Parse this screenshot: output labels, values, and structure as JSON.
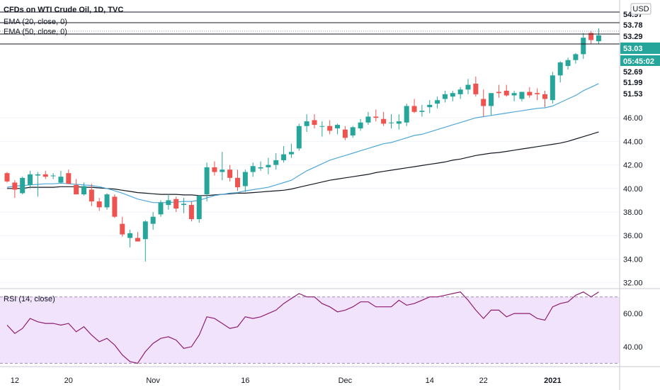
{
  "header": {
    "title": "CFDs on WTI Crude Oil, 1D, TVC",
    "ema20_label": "EMA (20, close, 0)",
    "ema50_label": "EMA (50, close, 0)",
    "currency": "USD"
  },
  "rsi_panel": {
    "label": "RSI (14, close)"
  },
  "x_axis_labels": [
    "12",
    "20",
    "Nov",
    "16",
    "Dec",
    "14",
    "22",
    "2021"
  ],
  "price_axis_ticks": [
    "46.00",
    "44.00",
    "42.00",
    "40.00",
    "38.00",
    "36.00",
    "34.00",
    "32.00"
  ],
  "rsi_axis_ticks": [
    "60.00",
    "40.00"
  ],
  "price_tags": [
    {
      "text": "54.97",
      "style": "line"
    },
    {
      "text": "53.78",
      "style": "line"
    },
    {
      "text": "53.29",
      "style": "line"
    },
    {
      "text": "53.03",
      "style": "green"
    },
    {
      "text": "05:45:02",
      "style": "green"
    },
    {
      "text": "52.69",
      "style": "line"
    },
    {
      "text": "51.99",
      "style": "line"
    },
    {
      "text": "51.53",
      "style": "line"
    }
  ],
  "colors": {
    "up": "#26a69a",
    "down": "#ef5350",
    "ema20": "#4fa8d8",
    "ema50": "#131722",
    "rsi_line": "#8e1e70",
    "rsi_band": "#f1e3fb"
  },
  "chart_data": [
    {
      "type": "candlestick",
      "title": "CFDs on WTI Crude Oil, 1D, TVC",
      "ylim": [
        31.5,
        56
      ],
      "series": [
        {
          "name": "CFDs on WTI Crude Oil",
          "ohlc": [
            [
              41.3,
              41.4,
              40.5,
              40.6
            ],
            [
              40.5,
              40.7,
              39.2,
              39.9
            ],
            [
              39.6,
              41.0,
              39.5,
              40.9
            ],
            [
              40.3,
              41.5,
              40.0,
              41.2
            ],
            [
              41.1,
              41.4,
              39.3,
              41.2
            ],
            [
              41.2,
              41.5,
              40.8,
              41.0
            ],
            [
              41.1,
              41.3,
              40.8,
              41.1
            ],
            [
              40.5,
              41.5,
              40.4,
              41.0
            ],
            [
              41.3,
              41.6,
              40.4,
              40.4
            ],
            [
              40.3,
              40.8,
              39.5,
              39.5
            ],
            [
              39.5,
              40.5,
              39.4,
              40.2
            ],
            [
              39.9,
              40.4,
              38.5,
              38.9
            ],
            [
              38.9,
              39.2,
              38.1,
              38.4
            ],
            [
              38.4,
              39.6,
              38.2,
              39.5
            ],
            [
              39.3,
              39.5,
              37.5,
              37.6
            ],
            [
              37.0,
              37.6,
              35.9,
              36.1
            ],
            [
              35.8,
              36.5,
              35.0,
              36.2
            ],
            [
              35.8,
              36.3,
              35.5,
              35.5
            ],
            [
              35.7,
              37.3,
              33.8,
              37.2
            ],
            [
              37.0,
              38.0,
              36.5,
              37.6
            ],
            [
              37.8,
              39.0,
              37.6,
              38.8
            ],
            [
              38.6,
              39.5,
              38.2,
              39.0
            ],
            [
              39.1,
              39.3,
              38.0,
              38.3
            ],
            [
              38.6,
              39.2,
              37.9,
              38.7
            ],
            [
              38.6,
              38.9,
              37.2,
              37.4
            ],
            [
              37.4,
              39.4,
              37.1,
              39.4
            ],
            [
              39.5,
              42.2,
              38.9,
              41.8
            ],
            [
              41.8,
              42.3,
              41.1,
              41.4
            ],
            [
              41.4,
              43.1,
              40.7,
              41.6
            ],
            [
              41.6,
              42.0,
              40.6,
              40.9
            ],
            [
              40.9,
              41.6,
              39.8,
              40.1
            ],
            [
              40.2,
              41.6,
              39.7,
              41.4
            ],
            [
              41.4,
              42.2,
              41.0,
              41.9
            ],
            [
              41.7,
              42.3,
              41.5,
              41.8
            ],
            [
              41.8,
              42.6,
              41.2,
              42.0
            ],
            [
              42.0,
              43.0,
              41.6,
              42.4
            ],
            [
              42.4,
              43.6,
              42.2,
              42.9
            ],
            [
              42.9,
              43.8,
              42.6,
              43.1
            ],
            [
              43.4,
              45.5,
              43.2,
              45.3
            ],
            [
              45.3,
              46.3,
              44.8,
              45.7
            ],
            [
              45.8,
              46.3,
              45.1,
              45.4
            ],
            [
              45.3,
              45.7,
              44.4,
              45.3
            ],
            [
              45.3,
              45.8,
              44.6,
              44.9
            ],
            [
              45.1,
              45.5,
              44.6,
              45.4
            ],
            [
              45.0,
              45.3,
              44.1,
              44.3
            ],
            [
              44.5,
              45.3,
              44.3,
              45.2
            ],
            [
              45.1,
              45.9,
              44.9,
              45.6
            ],
            [
              45.6,
              46.5,
              45.4,
              46.1
            ],
            [
              46.1,
              46.7,
              45.7,
              46.0
            ],
            [
              45.9,
              46.5,
              45.3,
              45.5
            ],
            [
              45.6,
              46.3,
              45.1,
              45.6
            ],
            [
              45.5,
              46.3,
              45.0,
              45.7
            ],
            [
              45.6,
              47.2,
              45.3,
              47.0
            ],
            [
              47.0,
              47.6,
              46.4,
              46.5
            ],
            [
              46.5,
              47.1,
              46.1,
              46.6
            ],
            [
              46.9,
              47.5,
              46.4,
              47.1
            ],
            [
              47.2,
              47.8,
              46.8,
              47.5
            ],
            [
              47.6,
              48.3,
              47.3,
              48.0
            ],
            [
              47.8,
              48.3,
              47.4,
              48.1
            ],
            [
              48.0,
              48.6,
              47.6,
              48.4
            ],
            [
              48.4,
              49.3,
              48.0,
              48.8
            ],
            [
              48.9,
              49.5,
              47.8,
              48.0
            ],
            [
              47.6,
              48.4,
              46.1,
              47.0
            ],
            [
              47.0,
              48.1,
              46.2,
              48.1
            ],
            [
              48.2,
              48.8,
              47.7,
              48.1
            ],
            [
              48.3,
              48.8,
              47.8,
              47.9
            ],
            [
              47.9,
              48.3,
              47.4,
              48.1
            ],
            [
              47.6,
              48.2,
              47.4,
              48.2
            ],
            [
              48.2,
              48.6,
              47.7,
              47.9
            ],
            [
              48.1,
              48.5,
              47.5,
              48.0
            ],
            [
              48.0,
              48.3,
              46.9,
              47.6
            ],
            [
              47.5,
              49.9,
              47.2,
              49.6
            ],
            [
              49.6,
              50.8,
              49.0,
              50.7
            ],
            [
              50.4,
              51.1,
              50.1,
              50.9
            ],
            [
              50.9,
              51.5,
              50.6,
              51.4
            ],
            [
              51.4,
              53.2,
              51.0,
              52.8
            ],
            [
              53.2,
              53.4,
              52.3,
              52.6
            ],
            [
              52.5,
              53.6,
              52.3,
              53.0
            ]
          ]
        },
        {
          "name": "EMA (20, close, 0)",
          "values": [
            40.1,
            40.2,
            40.25,
            40.3,
            40.35,
            40.4,
            40.4,
            40.45,
            40.4,
            40.35,
            40.3,
            40.25,
            40.15,
            40.0,
            39.8,
            39.6,
            39.35,
            39.1,
            38.95,
            38.8,
            38.8,
            38.8,
            38.85,
            38.9,
            38.9,
            39.0,
            39.2,
            39.4,
            39.5,
            39.6,
            39.65,
            39.8,
            39.9,
            40.0,
            40.1,
            40.3,
            40.5,
            40.7,
            41.1,
            41.5,
            41.8,
            42.1,
            42.4,
            42.6,
            42.8,
            43.0,
            43.2,
            43.4,
            43.6,
            43.8,
            43.9,
            44.1,
            44.3,
            44.5,
            44.6,
            44.8,
            45.0,
            45.2,
            45.4,
            45.6,
            45.8,
            46.0,
            46.1,
            46.2,
            46.3,
            46.4,
            46.5,
            46.6,
            46.7,
            46.8,
            46.85,
            47.0,
            47.3,
            47.6,
            47.9,
            48.3,
            48.6,
            48.9
          ]
        },
        {
          "name": "EMA (50, close, 0)",
          "values": [
            40.0,
            40.0,
            40.0,
            40.1,
            40.1,
            40.1,
            40.1,
            40.15,
            40.15,
            40.15,
            40.1,
            40.1,
            40.05,
            40.0,
            39.95,
            39.85,
            39.75,
            39.65,
            39.6,
            39.55,
            39.5,
            39.5,
            39.5,
            39.45,
            39.45,
            39.4,
            39.4,
            39.45,
            39.5,
            39.55,
            39.6,
            39.6,
            39.65,
            39.7,
            39.75,
            39.8,
            39.85,
            39.95,
            40.1,
            40.25,
            40.4,
            40.55,
            40.7,
            40.8,
            40.9,
            41.0,
            41.1,
            41.2,
            41.35,
            41.45,
            41.55,
            41.65,
            41.75,
            41.85,
            41.95,
            42.05,
            42.15,
            42.25,
            42.4,
            42.5,
            42.65,
            42.8,
            42.9,
            43.0,
            43.05,
            43.15,
            43.25,
            43.35,
            43.45,
            43.55,
            43.65,
            43.75,
            43.85,
            44.0,
            44.2,
            44.4,
            44.6,
            44.8
          ]
        }
      ]
    },
    {
      "type": "line",
      "title": "RSI (14, close)",
      "ylim": [
        28,
        75
      ],
      "series": [
        {
          "name": "RSI (14, close)",
          "values": [
            53,
            48,
            51,
            57,
            55,
            54,
            54,
            53,
            54,
            49,
            52,
            47,
            43,
            45,
            41,
            35,
            31,
            30,
            37,
            42,
            45,
            46,
            44,
            39,
            40,
            47,
            58,
            57,
            54,
            51,
            52,
            58,
            57,
            58,
            60,
            62,
            66,
            69,
            72,
            70,
            70,
            66,
            64,
            61,
            62,
            64,
            67,
            67,
            64,
            64,
            64,
            68,
            65,
            66,
            68,
            70,
            70,
            71,
            72,
            73,
            68,
            62,
            57,
            62,
            62,
            58,
            60,
            60,
            60,
            57,
            56,
            64,
            66,
            67,
            71,
            73,
            70,
            73
          ]
        }
      ]
    }
  ]
}
